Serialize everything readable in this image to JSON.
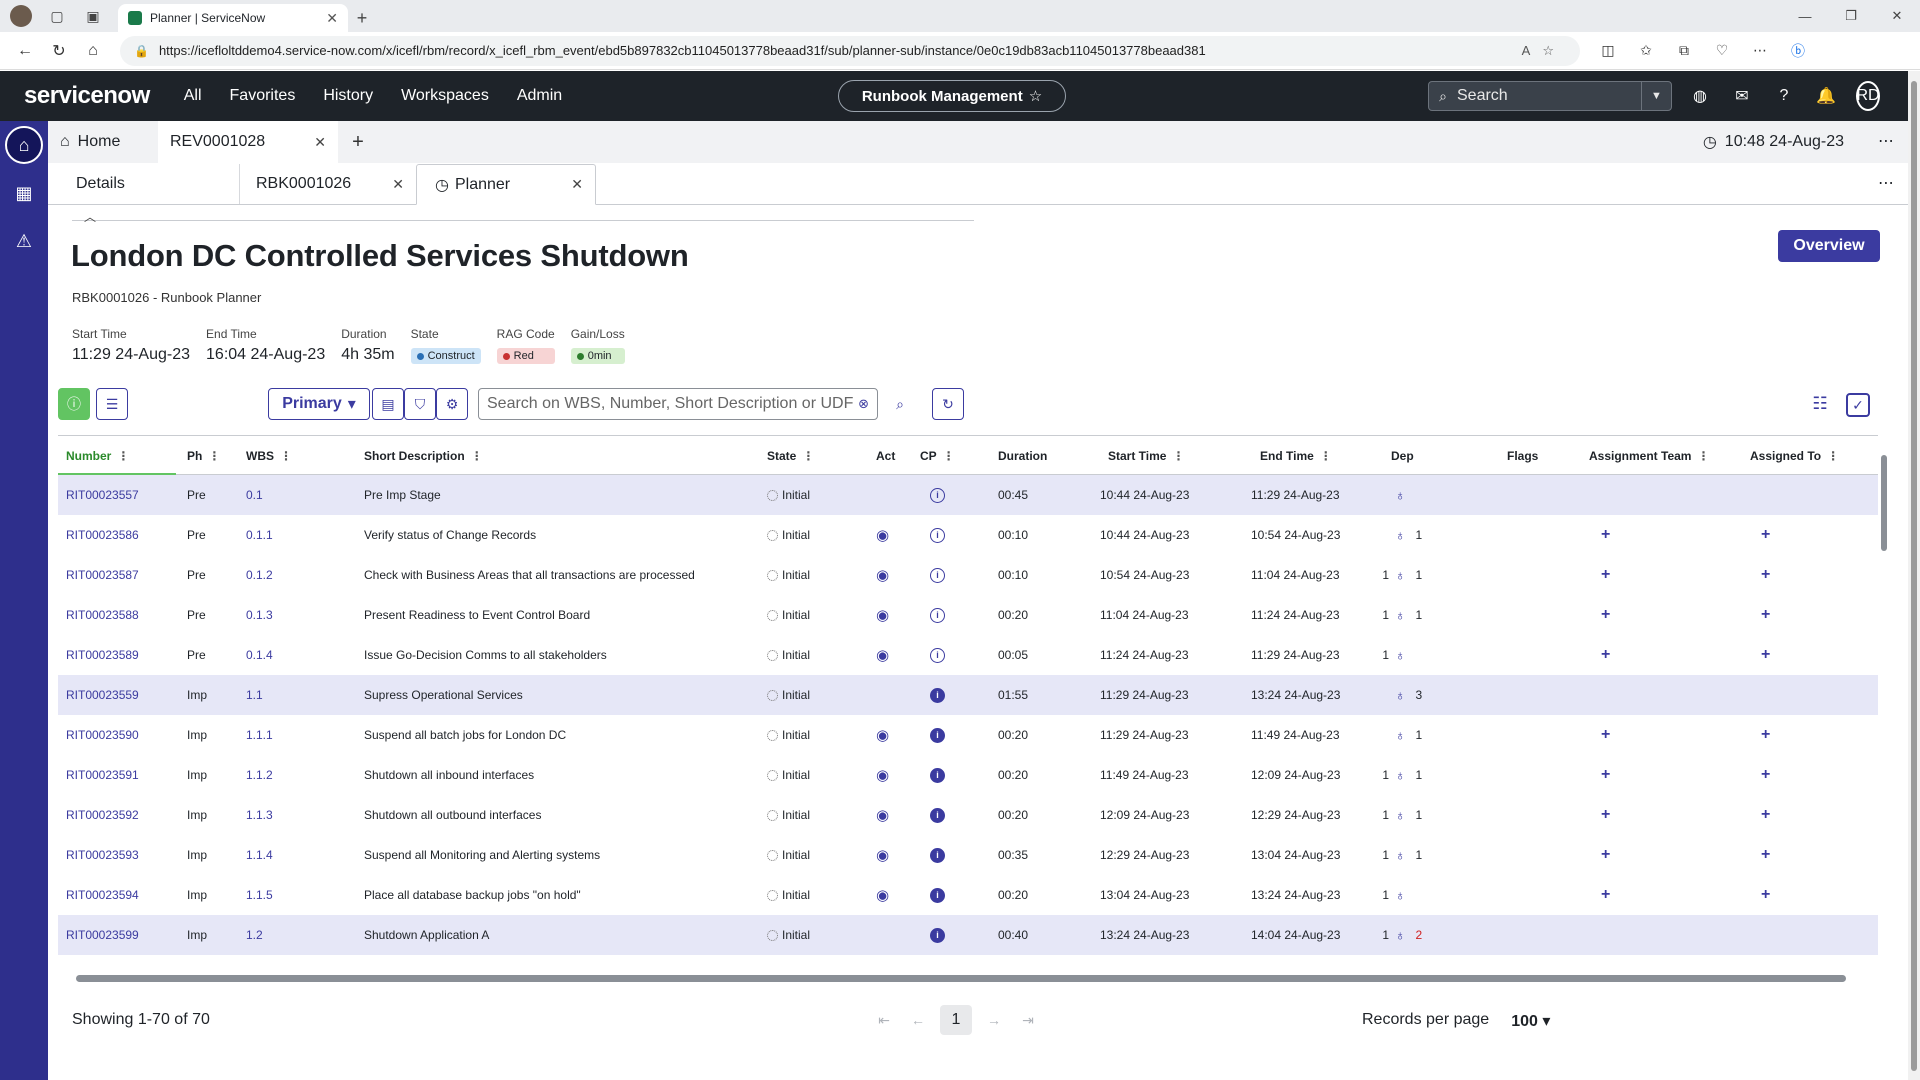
{
  "browser": {
    "tab_title": "Planner | ServiceNow",
    "url": "https://icefloltddemo4.service-now.com/x/icefl/rbm/record/x_icefl_rbm_event/ebd5b897832cb11045013778beaad31f/sub/planner-sub/instance/0e0c19db83acb11045013778beaad381"
  },
  "header": {
    "logo_text": "servicenow",
    "nav": [
      "All",
      "Favorites",
      "History",
      "Workspaces",
      "Admin"
    ],
    "app_scope": "Runbook Management",
    "search_placeholder": "Search",
    "avatar_initials": "RD"
  },
  "workspace_tabs": {
    "home": "Home",
    "record": "REV0001028",
    "clock": "10:48 24-Aug-23"
  },
  "sub_tabs": [
    "Details",
    "RBK0001026",
    "Planner"
  ],
  "page": {
    "title": "London DC Controlled Services Shutdown",
    "subtitle": "RBK0001026 - Runbook Planner",
    "overview_button": "Overview",
    "meta": [
      {
        "label": "Start Time",
        "value": "11:29 24-Aug-23"
      },
      {
        "label": "End Time",
        "value": "16:04 24-Aug-23"
      },
      {
        "label": "Duration",
        "value": "4h 35m"
      }
    ],
    "state_label": "State",
    "state_value": "Construct",
    "rag_label": "RAG Code",
    "rag_value": "Red",
    "gainloss_label": "Gain/Loss",
    "gainloss_value": "0min"
  },
  "toolbar": {
    "view": "Primary",
    "search_placeholder": "Search on WBS, Number, Short Description or UDF"
  },
  "grid": {
    "columns": [
      "Number",
      "Ph",
      "WBS",
      "Short Description",
      "State",
      "Act",
      "CP",
      "Duration",
      "Start Time",
      "End Time",
      "Dep",
      "Flags",
      "Assignment Team",
      "Assigned To"
    ],
    "rows": [
      {
        "num": "RIT00023557",
        "ph": "Pre",
        "wbs": "0.1",
        "desc": "Pre Imp Stage",
        "state": "Initial",
        "dur": "00:45",
        "start": "10:44 24-Aug-23",
        "end": "11:29 24-Aug-23",
        "dep_in": "",
        "dep_out": ""
      },
      {
        "num": "RIT00023586",
        "ph": "Pre",
        "wbs": "0.1.1",
        "desc": "Verify status of Change Records",
        "state": "Initial",
        "dur": "00:10",
        "start": "10:44 24-Aug-23",
        "end": "10:54 24-Aug-23",
        "dep_in": "",
        "dep_out": "1"
      },
      {
        "num": "RIT00023587",
        "ph": "Pre",
        "wbs": "0.1.2",
        "desc": "Check with Business Areas that all transactions are processed",
        "state": "Initial",
        "dur": "00:10",
        "start": "10:54 24-Aug-23",
        "end": "11:04 24-Aug-23",
        "dep_in": "1",
        "dep_out": "1"
      },
      {
        "num": "RIT00023588",
        "ph": "Pre",
        "wbs": "0.1.3",
        "desc": "Present Readiness to Event Control Board",
        "state": "Initial",
        "dur": "00:20",
        "start": "11:04 24-Aug-23",
        "end": "11:24 24-Aug-23",
        "dep_in": "1",
        "dep_out": "1"
      },
      {
        "num": "RIT00023589",
        "ph": "Pre",
        "wbs": "0.1.4",
        "desc": "Issue Go-Decision Comms to all stakeholders",
        "state": "Initial",
        "dur": "00:05",
        "start": "11:24 24-Aug-23",
        "end": "11:29 24-Aug-23",
        "dep_in": "1",
        "dep_out": ""
      },
      {
        "num": "RIT00023559",
        "ph": "Imp",
        "wbs": "1.1",
        "desc": "Supress Operational Services",
        "state": "Initial",
        "dur": "01:55",
        "start": "11:29 24-Aug-23",
        "end": "13:24 24-Aug-23",
        "dep_in": "",
        "dep_out": "3"
      },
      {
        "num": "RIT00023590",
        "ph": "Imp",
        "wbs": "1.1.1",
        "desc": "Suspend all batch jobs for London DC",
        "state": "Initial",
        "dur": "00:20",
        "start": "11:29 24-Aug-23",
        "end": "11:49 24-Aug-23",
        "dep_in": "",
        "dep_out": "1"
      },
      {
        "num": "RIT00023591",
        "ph": "Imp",
        "wbs": "1.1.2",
        "desc": "Shutdown all inbound interfaces",
        "state": "Initial",
        "dur": "00:20",
        "start": "11:49 24-Aug-23",
        "end": "12:09 24-Aug-23",
        "dep_in": "1",
        "dep_out": "1"
      },
      {
        "num": "RIT00023592",
        "ph": "Imp",
        "wbs": "1.1.3",
        "desc": "Shutdown all outbound interfaces",
        "state": "Initial",
        "dur": "00:20",
        "start": "12:09 24-Aug-23",
        "end": "12:29 24-Aug-23",
        "dep_in": "1",
        "dep_out": "1"
      },
      {
        "num": "RIT00023593",
        "ph": "Imp",
        "wbs": "1.1.4",
        "desc": "Suspend all Monitoring and Alerting systems",
        "state": "Initial",
        "dur": "00:35",
        "start": "12:29 24-Aug-23",
        "end": "13:04 24-Aug-23",
        "dep_in": "1",
        "dep_out": "1"
      },
      {
        "num": "RIT00023594",
        "ph": "Imp",
        "wbs": "1.1.5",
        "desc": "Place all database backup jobs \"on hold\"",
        "state": "Initial",
        "dur": "00:20",
        "start": "13:04 24-Aug-23",
        "end": "13:24 24-Aug-23",
        "dep_in": "1",
        "dep_out": ""
      },
      {
        "num": "RIT00023599",
        "ph": "Imp",
        "wbs": "1.2",
        "desc": "Shutdown Application A",
        "state": "Initial",
        "dur": "00:40",
        "start": "13:24 24-Aug-23",
        "end": "14:04 24-Aug-23",
        "dep_in": "1",
        "dep_out": "2"
      }
    ]
  },
  "footer": {
    "showing": "Showing 1-70 of 70",
    "page": "1",
    "records_label": "Records per page",
    "records_value": "100"
  }
}
